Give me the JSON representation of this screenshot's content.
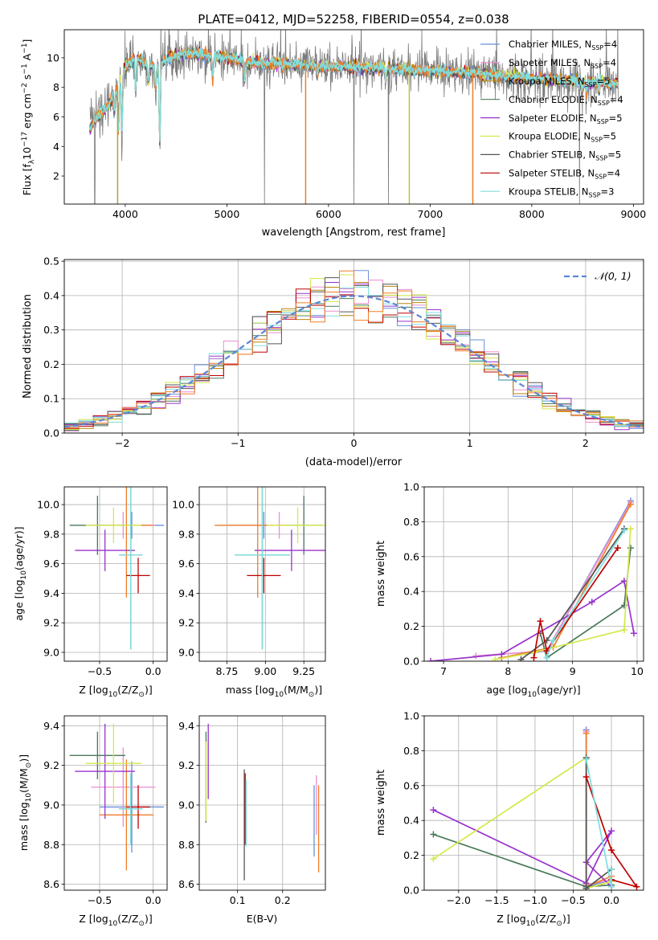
{
  "figure_title": "PLATE=0412, MJD=52258, FIBERID=0554, z=0.038",
  "colors": [
    "#6a8fd8",
    "#e88fd0",
    "#b8860b",
    "#4a7a5a",
    "#9932cc",
    "#d4e84a",
    "#555555",
    "#c00000",
    "#7fdfdf"
  ],
  "accent_colors": {
    "orange": "#f07d28",
    "gaussian": "#5b87d6"
  },
  "chart_data": [
    {
      "id": "spectrum",
      "type": "line",
      "xlabel": "wavelength [Angstrom, rest frame]",
      "ylabel_parts": {
        "a": "Flux [f",
        "b": "λ",
        "c": "10",
        "d": "−17",
        "e": " erg cm",
        "f": "−2",
        "g": " s",
        "h": "−1",
        "i": " A",
        "j": "−1",
        "k": "]"
      },
      "xlim": [
        3400,
        9100
      ],
      "ylim": [
        0.1,
        11.9
      ],
      "xticks": [
        4000,
        5000,
        6000,
        7000,
        8000,
        9000
      ],
      "yticks": [
        2,
        4,
        6,
        8,
        10
      ],
      "grid": false,
      "legend_position": "top-right",
      "series": [
        {
          "name": "Chabrier MILES",
          "sub": "SSP",
          "n": "4"
        },
        {
          "name": "Salpeter MILES",
          "sub": "SSP",
          "n": "4"
        },
        {
          "name": "Kroupa MILES",
          "sub": "SSP",
          "n": "5"
        },
        {
          "name": "Chabrier ELODIE",
          "sub": "SSP",
          "n": "4"
        },
        {
          "name": "Salpeter ELODIE",
          "sub": "SSP",
          "n": "5"
        },
        {
          "name": "Kroupa ELODIE",
          "sub": "SSP",
          "n": "5"
        },
        {
          "name": "Chabrier STELIB",
          "sub": "SSP",
          "n": "5"
        },
        {
          "name": "Salpeter STELIB",
          "sub": "SSP",
          "n": "4"
        },
        {
          "name": "Kroupa STELIB",
          "sub": "SSP",
          "n": "3"
        }
      ],
      "continuum": [
        [
          3650,
          5.2
        ],
        [
          3700,
          5.8
        ],
        [
          3800,
          6.5
        ],
        [
          3900,
          7.6
        ],
        [
          4000,
          9.4
        ],
        [
          4100,
          10.0
        ],
        [
          4200,
          9.6
        ],
        [
          4300,
          9.4
        ],
        [
          4400,
          9.9
        ],
        [
          4600,
          10.3
        ],
        [
          4800,
          10.2
        ],
        [
          5000,
          10.0
        ],
        [
          5200,
          9.7
        ],
        [
          5500,
          9.6
        ],
        [
          6000,
          9.4
        ],
        [
          6500,
          9.3
        ],
        [
          7000,
          9.1
        ],
        [
          7500,
          8.9
        ],
        [
          8000,
          8.6
        ],
        [
          8500,
          8.4
        ],
        [
          8850,
          8.2
        ]
      ],
      "absorption_features": [
        [
          3890,
          6.3
        ],
        [
          3933,
          5.0
        ],
        [
          3968,
          5.2
        ],
        [
          4102,
          7.8
        ],
        [
          4227,
          8.4
        ],
        [
          4300,
          7.9
        ],
        [
          4340,
          4.3
        ],
        [
          4861,
          8.6
        ],
        [
          5175,
          8.4
        ],
        [
          5890,
          8.7
        ],
        [
          6563,
          8.5
        ],
        [
          8498,
          7.7
        ],
        [
          8542,
          7.6
        ],
        [
          8662,
          7.7
        ]
      ],
      "spikes": [
        {
          "x": 3925,
          "y": 0.1
        },
        {
          "x": 5775,
          "y": 0.1
        },
        {
          "x": 6795,
          "y": 0.1
        },
        {
          "x": 7420,
          "y": 0.1
        }
      ],
      "noise_dropouts": [
        3700,
        5370,
        6590
      ]
    },
    {
      "id": "residuals",
      "type": "histogram",
      "xlabel": "(data-model)/error",
      "ylabel": "Normed distribution",
      "xlim": [
        -2.5,
        2.5
      ],
      "ylim": [
        0,
        0.505
      ],
      "xticks": [
        -2,
        -1,
        0,
        1,
        2
      ],
      "yticks": [
        0.0,
        0.1,
        0.2,
        0.3,
        0.4,
        0.5
      ],
      "grid": true,
      "legend_position": "top-right",
      "gaussian_label": "𝒩(0, 1)",
      "bins": {
        "start": -2.5,
        "width": 0.125,
        "count": 40
      }
    },
    {
      "id": "age_vs_Z",
      "type": "errorbar",
      "xlabel_parts": {
        "a": "Z [log",
        "b": "10",
        "c": "(Z/Z",
        "d": "⊙",
        "e": ")]"
      },
      "ylabel_parts": {
        "a": "age  [log",
        "b": "10",
        "c": "(age/yr)]"
      },
      "xlim": [
        -0.83,
        0.13
      ],
      "ylim": [
        8.94,
        10.12
      ],
      "xticks": [
        -0.5,
        0.0
      ],
      "xtick_labels": [
        "−0.5",
        "0.0"
      ],
      "yticks": [
        9.0,
        9.2,
        9.4,
        9.6,
        9.8,
        10.0
      ],
      "grid": true,
      "points": [
        {
          "x": -0.2,
          "y": 9.86,
          "xerr": 0.3,
          "yerr": 0.09
        },
        {
          "x": -0.28,
          "y": 9.86,
          "xerr": 0.3,
          "yerr": 0.09
        },
        {
          "x": -0.25,
          "y": 9.86,
          "xerr": 0.25,
          "yerr": 0.49
        },
        {
          "x": -0.52,
          "y": 9.86,
          "xerr": 0.26,
          "yerr": 0.2
        },
        {
          "x": -0.45,
          "y": 9.69,
          "xerr": 0.28,
          "yerr": 0.14
        },
        {
          "x": -0.37,
          "y": 9.86,
          "xerr": 0.26,
          "yerr": 0.12
        },
        {
          "x": -0.21,
          "y": 9.66,
          "xerr": 0.11,
          "yerr": 0.64
        },
        {
          "x": -0.14,
          "y": 9.52,
          "xerr": 0.11,
          "yerr": 0.12
        },
        {
          "x": -0.21,
          "y": 9.66,
          "xerr": 0.11,
          "yerr": 0.64
        }
      ]
    },
    {
      "id": "age_vs_mass",
      "type": "errorbar",
      "xlabel_parts": {
        "a": "mass [log",
        "b": "10",
        "c": "(M/M",
        "d": "⊙",
        "e": ")]"
      },
      "xlim": [
        8.57,
        9.39
      ],
      "ylim": [
        8.94,
        10.12
      ],
      "xticks": [
        8.75,
        9.0,
        9.25
      ],
      "yticks": [
        9.0,
        9.2,
        9.4,
        9.6,
        9.8,
        10.0
      ],
      "grid": true,
      "points": [
        {
          "x": 8.99,
          "y": 9.86,
          "xerr": 0.23,
          "yerr": 0.09
        },
        {
          "x": 9.09,
          "y": 9.86,
          "xerr": 0.2,
          "yerr": 0.09
        },
        {
          "x": 8.95,
          "y": 9.86,
          "xerr": 0.28,
          "yerr": 0.49
        },
        {
          "x": 9.25,
          "y": 9.86,
          "xerr": 0.12,
          "yerr": 0.2
        },
        {
          "x": 9.17,
          "y": 9.69,
          "xerr": 0.24,
          "yerr": 0.14
        },
        {
          "x": 9.21,
          "y": 9.86,
          "xerr": 0.2,
          "yerr": 0.12
        },
        {
          "x": 8.98,
          "y": 9.66,
          "xerr": 0.18,
          "yerr": 0.64
        },
        {
          "x": 8.99,
          "y": 9.52,
          "xerr": 0.11,
          "yerr": 0.12
        },
        {
          "x": 8.98,
          "y": 9.66,
          "xerr": 0.18,
          "yerr": 0.64
        }
      ]
    },
    {
      "id": "weight_vs_age",
      "type": "line",
      "xlabel_parts": {
        "a": "age  [log",
        "b": "10",
        "c": "(age/yr)]"
      },
      "ylabel": "mass weight",
      "xlim": [
        6.7,
        10.1
      ],
      "ylim": [
        0,
        1.0
      ],
      "xticks": [
        7,
        8,
        9,
        10
      ],
      "yticks": [
        0.0,
        0.2,
        0.4,
        0.6,
        0.8,
        1.0
      ],
      "grid": true,
      "series": [
        {
          "x": [
            7.9,
            8.6,
            9.9
          ],
          "y": [
            0.02,
            0.06,
            0.92
          ]
        },
        {
          "x": [
            7.5,
            8.6,
            9.9
          ],
          "y": [
            0.03,
            0.06,
            0.91
          ]
        },
        {
          "x": [
            7.9,
            8.7,
            9.9
          ],
          "y": [
            0.02,
            0.08,
            0.9
          ]
        },
        {
          "x": [
            8.5,
            8.6,
            9.8,
            9.9
          ],
          "y": [
            0.16,
            0.02,
            0.32,
            0.65
          ]
        },
        {
          "x": [
            6.8,
            7.9,
            9.3,
            9.8,
            9.95
          ],
          "y": [
            0.0,
            0.04,
            0.34,
            0.46,
            0.16
          ]
        },
        {
          "x": [
            7.8,
            8.4,
            9.8,
            9.9
          ],
          "y": [
            0.01,
            0.05,
            0.18,
            0.76
          ]
        },
        {
          "x": [
            8.2,
            8.6,
            9.8
          ],
          "y": [
            0.01,
            0.12,
            0.76
          ]
        },
        {
          "x": [
            8.4,
            8.5,
            8.6,
            9.7
          ],
          "y": [
            0.02,
            0.23,
            0.06,
            0.65
          ]
        },
        {
          "x": [
            8.6,
            8.7,
            9.8
          ],
          "y": [
            0.02,
            0.12,
            0.75
          ]
        }
      ]
    },
    {
      "id": "mass_vs_Z",
      "type": "errorbar",
      "xlabel_parts": {
        "a": "Z [log",
        "b": "10",
        "c": "(Z/Z",
        "d": "⊙",
        "e": ")]"
      },
      "ylabel_parts": {
        "a": "mass [log",
        "b": "10",
        "c": "(M/M",
        "d": "⊙",
        "e": ")]"
      },
      "xlim": [
        -0.83,
        0.13
      ],
      "ylim": [
        8.57,
        9.45
      ],
      "xticks": [
        -0.5,
        0.0
      ],
      "xtick_labels": [
        "−0.5",
        "0.0"
      ],
      "yticks": [
        8.6,
        8.8,
        9.0,
        9.2,
        9.4
      ],
      "grid": true,
      "points": [
        {
          "x": -0.2,
          "y": 8.99,
          "xerr": 0.3,
          "yerr": 0.23
        },
        {
          "x": -0.28,
          "y": 9.09,
          "xerr": 0.3,
          "yerr": 0.2
        },
        {
          "x": -0.25,
          "y": 8.95,
          "xerr": 0.25,
          "yerr": 0.28
        },
        {
          "x": -0.52,
          "y": 9.25,
          "xerr": 0.26,
          "yerr": 0.12
        },
        {
          "x": -0.45,
          "y": 9.17,
          "xerr": 0.28,
          "yerr": 0.24
        },
        {
          "x": -0.37,
          "y": 9.21,
          "xerr": 0.26,
          "yerr": 0.2
        },
        {
          "x": -0.21,
          "y": 8.98,
          "xerr": 0.11,
          "yerr": 0.18
        },
        {
          "x": -0.14,
          "y": 8.99,
          "xerr": 0.11,
          "yerr": 0.11
        },
        {
          "x": -0.21,
          "y": 8.98,
          "xerr": 0.11,
          "yerr": 0.18
        }
      ]
    },
    {
      "id": "mass_vs_ebv",
      "type": "errorbar",
      "xlabel": "E(B-V)",
      "xlim": [
        0.015,
        0.295
      ],
      "ylim": [
        8.57,
        9.45
      ],
      "xticks": [
        0.1,
        0.2
      ],
      "xtick_labels": [
        "0.1",
        "0.2"
      ],
      "yticks": [
        8.6,
        8.8,
        9.0,
        9.2,
        9.4
      ],
      "grid": true,
      "points": [
        {
          "x": 0.27,
          "y": 8.92,
          "yerr": 0.18
        },
        {
          "x": 0.275,
          "y": 9.0,
          "yerr": 0.15
        },
        {
          "x": 0.28,
          "y": 8.88,
          "yerr": 0.22
        },
        {
          "x": 0.03,
          "y": 9.14,
          "yerr": 0.23
        },
        {
          "x": 0.035,
          "y": 9.22,
          "yerr": 0.19
        },
        {
          "x": 0.03,
          "y": 9.12,
          "yerr": 0.2
        },
        {
          "x": 0.115,
          "y": 8.9,
          "yerr": 0.28
        },
        {
          "x": 0.117,
          "y": 8.98,
          "yerr": 0.18
        },
        {
          "x": 0.119,
          "y": 8.96,
          "yerr": 0.17
        }
      ]
    },
    {
      "id": "weight_vs_Z",
      "type": "line",
      "xlabel_parts": {
        "a": "Z [log",
        "b": "10",
        "c": "(Z/Z",
        "d": "⊙",
        "e": ")]"
      },
      "ylabel": "mass weight",
      "xlim": [
        -2.45,
        0.42
      ],
      "ylim": [
        0,
        1.0
      ],
      "xticks": [
        -2.0,
        -1.5,
        -1.0,
        -0.5,
        0.0
      ],
      "xtick_labels": [
        "−2.0",
        "−1.5",
        "−1.0",
        "−0.5",
        "0.0"
      ],
      "yticks": [
        0.0,
        0.2,
        0.4,
        0.6,
        0.8,
        1.0
      ],
      "grid": true,
      "series": [
        {
          "x": [
            -0.33,
            -0.33,
            0.0
          ],
          "y": [
            0.92,
            0.02,
            0.06
          ]
        },
        {
          "x": [
            -0.33,
            -0.33,
            0.0
          ],
          "y": [
            0.91,
            0.03,
            0.06
          ]
        },
        {
          "x": [
            -0.33,
            -0.33,
            0.0
          ],
          "y": [
            0.9,
            0.02,
            0.08
          ]
        },
        {
          "x": [
            -2.33,
            -0.33,
            0.0
          ],
          "y": [
            0.32,
            0.02,
            0.03
          ]
        },
        {
          "x": [
            -2.33,
            -0.33,
            0.0,
            -0.33,
            0.0
          ],
          "y": [
            0.46,
            0.04,
            0.34,
            0.16,
            0.02
          ]
        },
        {
          "x": [
            -2.33,
            -0.33,
            -0.33,
            0.0
          ],
          "y": [
            0.18,
            0.76,
            0.01,
            0.05
          ]
        },
        {
          "x": [
            -0.33,
            -0.33,
            0.0
          ],
          "y": [
            0.76,
            0.01,
            0.12
          ]
        },
        {
          "x": [
            -0.33,
            0.0,
            0.33,
            0.0
          ],
          "y": [
            0.65,
            0.23,
            0.02,
            0.06
          ]
        },
        {
          "x": [
            -0.33,
            0.0,
            0.0
          ],
          "y": [
            0.75,
            0.02,
            0.12
          ]
        }
      ]
    }
  ]
}
